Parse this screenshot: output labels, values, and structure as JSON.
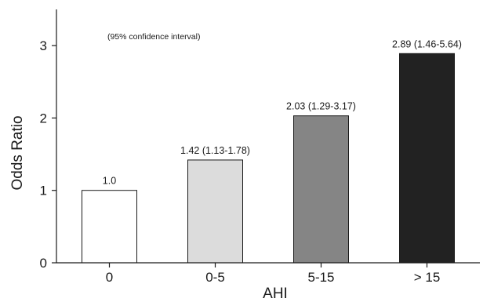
{
  "chart_data": {
    "type": "bar",
    "categories": [
      "0",
      "0-5",
      "5-15",
      "> 15"
    ],
    "values": [
      1.0,
      1.42,
      2.03,
      2.89
    ],
    "data_labels": [
      "1.0",
      "1.42 (1.13-1.78)",
      "2.03 (1.29-3.17)",
      "2.89 (1.46-5.64)"
    ],
    "bar_colors": [
      "#ffffff",
      "#dcdcdc",
      "#858585",
      "#222222"
    ],
    "xlabel": "AHI",
    "ylabel": "Odds Ratio",
    "ylim": [
      0,
      3.5
    ],
    "yticks": [
      0,
      1,
      2,
      3
    ],
    "annotation": "(95% confidence interval)",
    "grid": false,
    "legend": "none"
  }
}
